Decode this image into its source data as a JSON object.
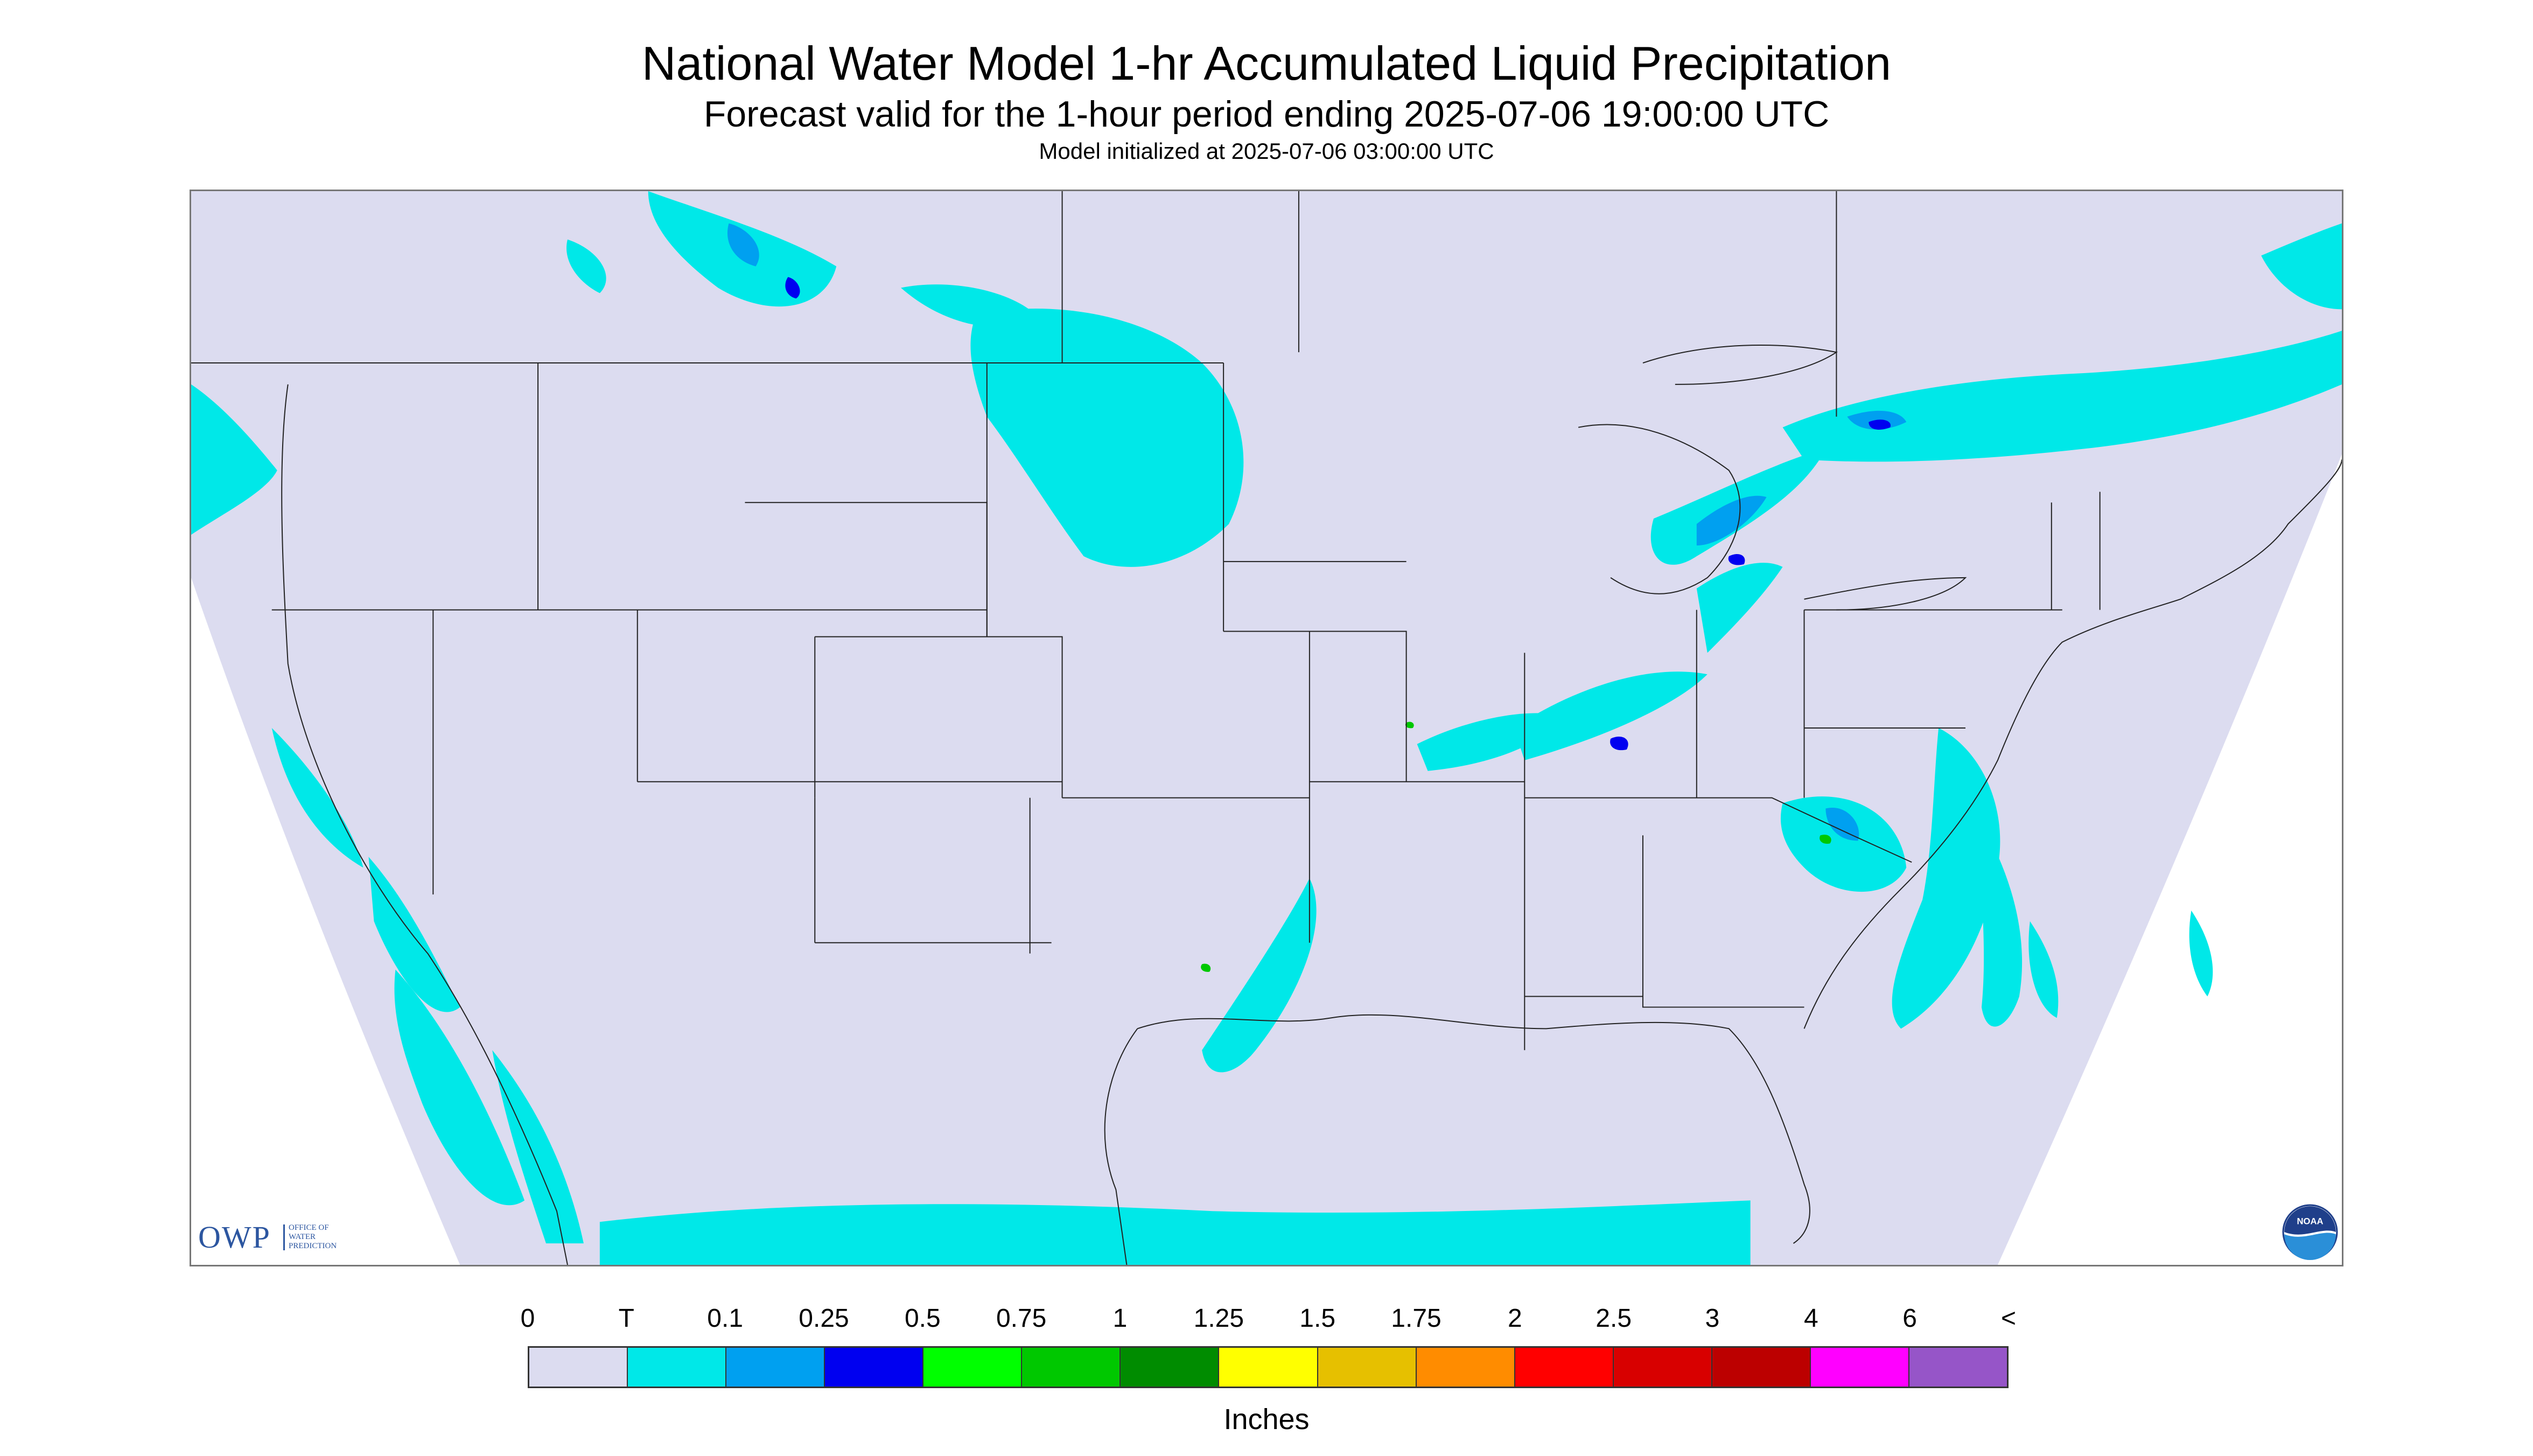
{
  "header": {
    "title": "National Water Model 1-hr Accumulated Liquid Precipitation",
    "subtitle": "Forecast valid for the 1-hour period ending 2025-07-06 19:00:00 UTC",
    "init": "Model initialized at 2025-07-06 03:00:00 UTC"
  },
  "logos": {
    "owp_big": "OWP",
    "owp_small_1": "OFFICE OF",
    "owp_small_2": "WATER",
    "owp_small_3": "PREDICTION",
    "noaa": "NOAA"
  },
  "legend": {
    "units": "Inches",
    "ticks": [
      "0",
      "T",
      "0.1",
      "0.25",
      "0.5",
      "0.75",
      "1",
      "1.25",
      "1.5",
      "1.75",
      "2",
      "2.5",
      "3",
      "4",
      "6",
      "<"
    ],
    "colors": [
      "#dcdcf0",
      "#00e8e8",
      "#00a0f0",
      "#0000f0",
      "#00ff00",
      "#00c800",
      "#008c00",
      "#ffff00",
      "#e6c000",
      "#ff8c00",
      "#ff0000",
      "#d80000",
      "#bc0000",
      "#ff00ff",
      "#9655c8"
    ]
  },
  "map": {
    "background_color": "#dcdcf0",
    "outside_color": "#ffffff",
    "boundary_color": "#222222"
  }
}
